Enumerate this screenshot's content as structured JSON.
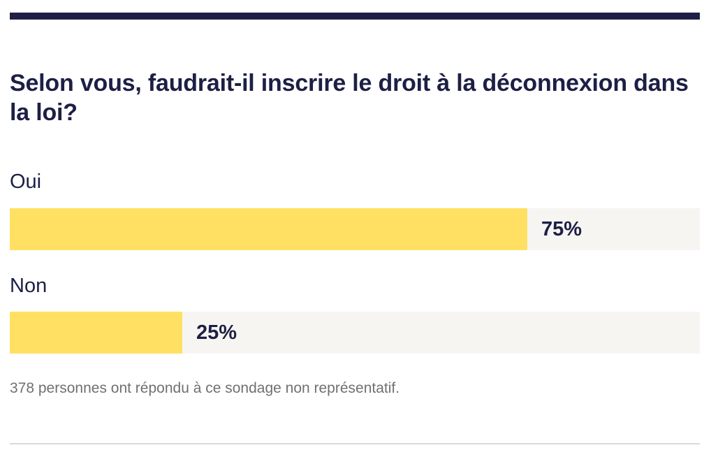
{
  "poll": {
    "question": "Selon vous, faudrait-il inscrire le droit à la déconnexion dans la loi?",
    "options": [
      {
        "label": "Oui",
        "percent_text": "75%",
        "fraction": 0.75
      },
      {
        "label": "Non",
        "percent_text": "25%",
        "fraction": 0.25
      }
    ],
    "footnote": "378 personnes ont répondu à ce sondage non représentatif."
  },
  "colors": {
    "accent_dark": "#1d1f45",
    "bar_fill": "#ffe063",
    "bar_track": "#f6f5f2",
    "footnote": "#707070",
    "divider": "#d9d9d9"
  }
}
